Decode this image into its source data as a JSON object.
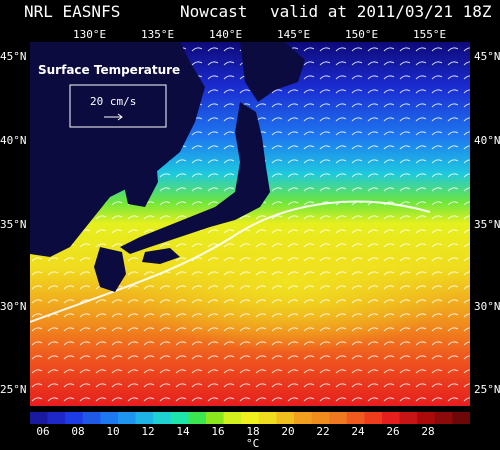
{
  "header": {
    "left": "NRL EASNFS",
    "middle": "Nowcast",
    "right": "valid at 2011/03/21 18Z"
  },
  "map": {
    "field_label": "Surface Temperature",
    "vector_scale_label": "20 cm/s",
    "colors": {
      "land": "#0b0b40",
      "background": "#000000"
    }
  },
  "axes": {
    "longitude_labels": [
      "130°E",
      "135°E",
      "140°E",
      "145°E",
      "150°E",
      "155°E"
    ],
    "latitude_labels": [
      "45°N",
      "40°N",
      "35°N",
      "30°N",
      "25°N"
    ]
  },
  "colorbar": {
    "unit": "°C",
    "tick_labels": [
      "06",
      "08",
      "10",
      "12",
      "14",
      "16",
      "18",
      "20",
      "22",
      "24",
      "26",
      "28"
    ],
    "colors": [
      "#1a1aa0",
      "#1e28c8",
      "#1e3ce6",
      "#1e5ae6",
      "#1e78f0",
      "#1e96f0",
      "#1eb4e6",
      "#1ed2d2",
      "#1ee6aa",
      "#3ce650",
      "#8ce61e",
      "#d2f01e",
      "#f0f01e",
      "#f0dc1e",
      "#f0be1e",
      "#f0a01e",
      "#f08c1e",
      "#f0781e",
      "#f05a1e",
      "#f03c1e",
      "#e61e1e",
      "#c81414",
      "#aa0a0a",
      "#8c0a0a",
      "#6e0808"
    ]
  }
}
